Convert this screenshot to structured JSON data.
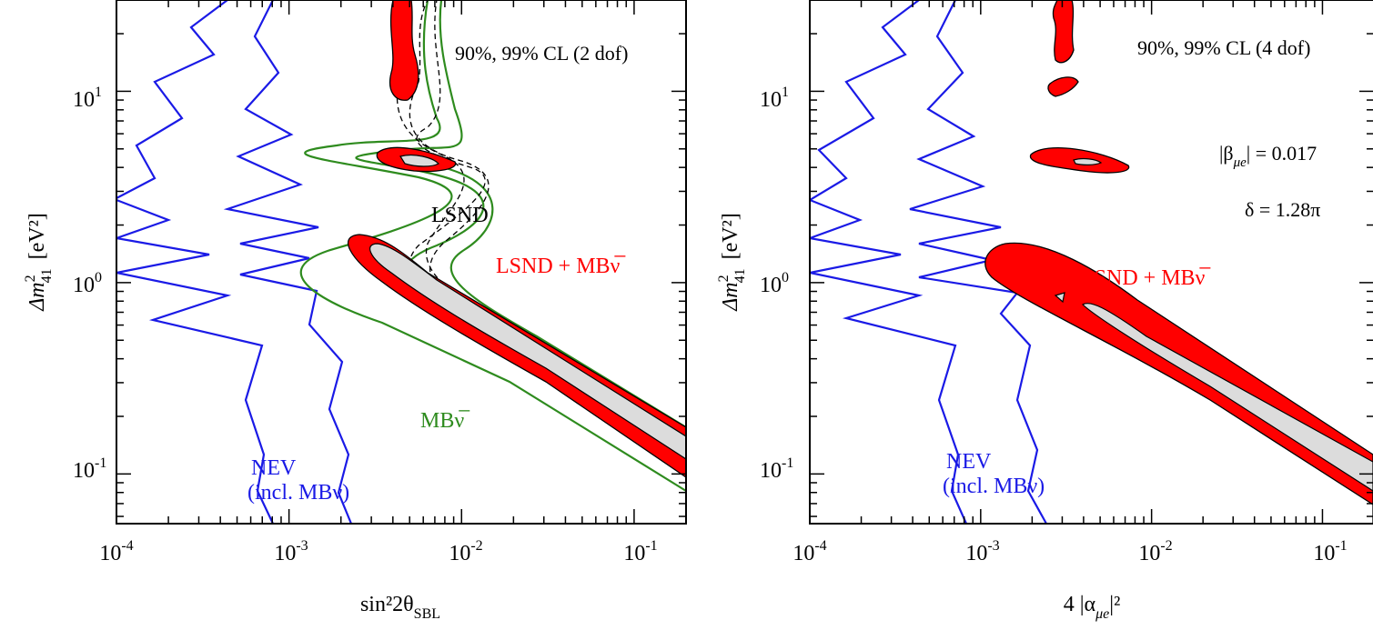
{
  "chart_data": [
    {
      "type": "contour",
      "xlabel": "sin²2θ",
      "xlabel_sub": "SBL",
      "ylabel": "Δm",
      "ylabel_sup": "2",
      "ylabel_sub": "41",
      "ylabel_unit": "[eV²]",
      "xscale": "log",
      "yscale": "log",
      "xlim": [
        0.0001,
        0.2
      ],
      "ylim": [
        0.055,
        30
      ],
      "x_ticks": [
        {
          "base": "10",
          "exp": "-4",
          "value": 0.0001
        },
        {
          "base": "10",
          "exp": "-3",
          "value": 0.001
        },
        {
          "base": "10",
          "exp": "-2",
          "value": 0.01
        },
        {
          "base": "10",
          "exp": "-1",
          "value": 0.1
        }
      ],
      "y_ticks": [
        {
          "base": "10",
          "exp": "-1",
          "value": 0.1
        },
        {
          "base": "10",
          "exp": "0",
          "value": 1
        },
        {
          "base": "10",
          "exp": "1",
          "value": 10
        }
      ],
      "annotations": {
        "cl": "90%, 99% CL (2 dof)",
        "lsnd": "LSND",
        "combined": "LSND + MBν̅",
        "mb": "MBν̅",
        "nev": "NEV",
        "nev_sub": "(incl. MBν)"
      },
      "colors": {
        "nev": "#1a1ae6",
        "mb": "#2e8b1e",
        "lsnd": "#000000",
        "combined": "#ff0000",
        "inner": "#dcdcdc"
      },
      "series": [
        {
          "name": "NEV",
          "style": "blue solid",
          "points_outer": [
            [
              0.0016,
              0.055
            ],
            [
              0.0014,
              0.08
            ],
            [
              0.0016,
              0.12
            ],
            [
              0.0013,
              0.2
            ],
            [
              0.0015,
              0.35
            ],
            [
              0.0011,
              0.55
            ],
            [
              0.0012,
              0.8
            ],
            [
              0.0005,
              1.0
            ],
            [
              0.0011,
              1.3
            ],
            [
              0.0005,
              1.6
            ],
            [
              0.0012,
              2.0
            ],
            [
              0.0004,
              2.4
            ],
            [
              0.001,
              3.2
            ],
            [
              0.0005,
              4.5
            ],
            [
              0.0009,
              6
            ],
            [
              0.0005,
              9
            ],
            [
              0.0008,
              14
            ],
            [
              0.0006,
              20
            ],
            [
              0.0008,
              30
            ]
          ],
          "points_inner": [
            [
              0.00068,
              0.055
            ],
            [
              0.0006,
              0.08
            ],
            [
              0.0007,
              0.13
            ],
            [
              0.0005,
              0.25
            ],
            [
              0.0006,
              0.45
            ],
            [
              0.00012,
              0.6
            ],
            [
              0.0004,
              0.9
            ],
            [
              0.0001,
              1.2
            ],
            [
              0.0003,
              1.6
            ],
            [
              0.0001,
              2.1
            ],
            [
              0.00016,
              3
            ],
            [
              0.0001,
              4
            ]
          ]
        },
        {
          "name": "MBν̅",
          "style": "green solid"
        },
        {
          "name": "LSND",
          "style": "black dashed"
        },
        {
          "name": "LSND + MBν̅",
          "style": "red filled (99%), grey (90%)"
        }
      ]
    },
    {
      "type": "contour",
      "xlabel": "4 |α",
      "xlabel_sub": "μe",
      "xlabel_tail": "|²",
      "ylabel": "Δm",
      "ylabel_sup": "2",
      "ylabel_sub": "41",
      "ylabel_unit": "[eV²]",
      "xscale": "log",
      "yscale": "log",
      "xlim": [
        0.0001,
        0.2
      ],
      "ylim": [
        0.055,
        30
      ],
      "x_ticks": [
        {
          "base": "10",
          "exp": "-4",
          "value": 0.0001
        },
        {
          "base": "10",
          "exp": "-3",
          "value": 0.001
        },
        {
          "base": "10",
          "exp": "-2",
          "value": 0.01
        },
        {
          "base": "10",
          "exp": "-1",
          "value": 0.1
        }
      ],
      "y_ticks": [
        {
          "base": "10",
          "exp": "-1",
          "value": 0.1
        },
        {
          "base": "10",
          "exp": "0",
          "value": 1
        },
        {
          "base": "10",
          "exp": "1",
          "value": 10
        }
      ],
      "annotations": {
        "cl": "90%, 99% CL (4 dof)",
        "beta_lhs": "|β",
        "beta_sub": "μe",
        "beta_rhs": "| = 0.017",
        "delta": "δ = 1.28π",
        "combined": "LSND + MBν̅",
        "nev": "NEV",
        "nev_sub": "(incl. MBν)"
      },
      "colors": {
        "nev": "#1a1ae6",
        "combined": "#ff0000",
        "inner": "#dcdcdc"
      },
      "series": [
        {
          "name": "NEV",
          "style": "blue solid"
        },
        {
          "name": "LSND + MBν̅",
          "style": "red filled (99%), grey (90%)"
        }
      ]
    }
  ]
}
